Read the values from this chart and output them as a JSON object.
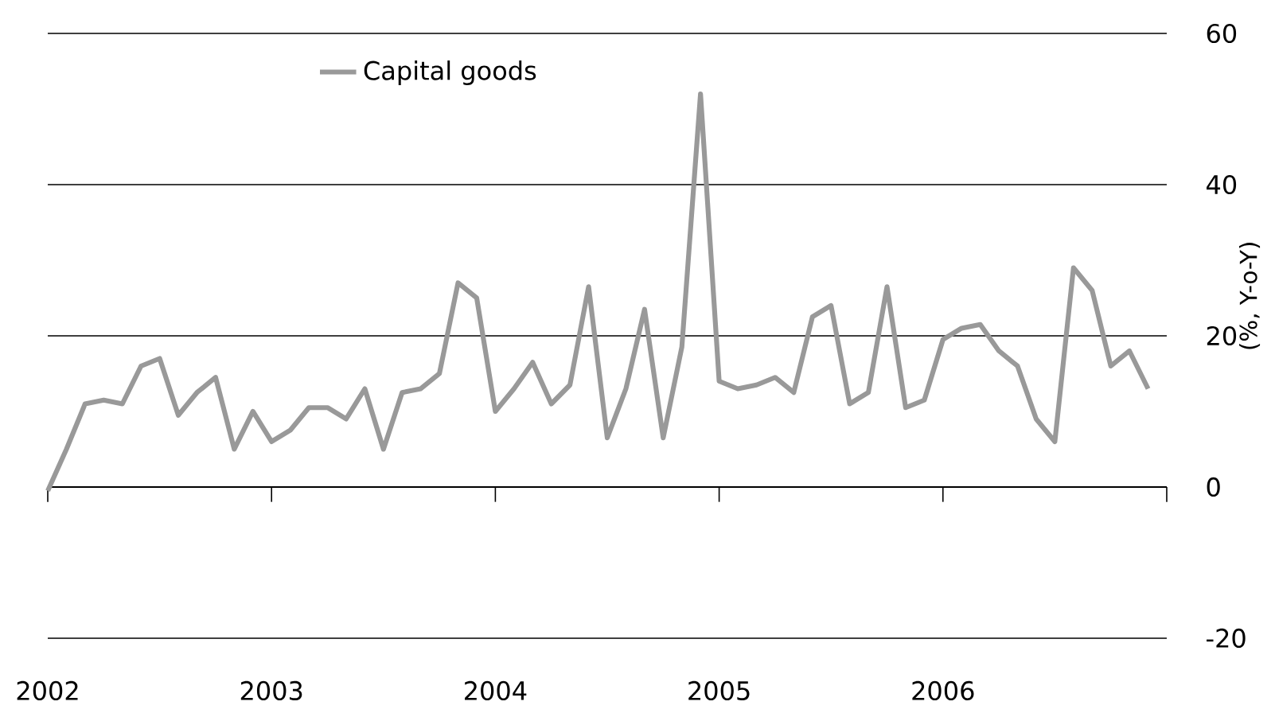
{
  "chart_data": {
    "type": "line",
    "ylabel": "(%, Y-o-Y)",
    "x": [
      2002,
      2002.0833,
      2002.1667,
      2002.25,
      2002.3333,
      2002.4167,
      2002.5,
      2002.5833,
      2002.6667,
      2002.75,
      2002.8333,
      2002.9167,
      2003,
      2003.0833,
      2003.1667,
      2003.25,
      2003.3333,
      2003.4167,
      2003.5,
      2003.5833,
      2003.6667,
      2003.75,
      2003.8333,
      2003.9167,
      2004,
      2004.0833,
      2004.1667,
      2004.25,
      2004.3333,
      2004.4167,
      2004.5,
      2004.5833,
      2004.6667,
      2004.75,
      2004.8333,
      2004.9167,
      2005,
      2005.0833,
      2005.1667,
      2005.25,
      2005.3333,
      2005.4167,
      2005.5,
      2005.5833,
      2005.6667,
      2005.75,
      2005.8333,
      2005.9167,
      2006,
      2006.0833,
      2006.1667,
      2006.25,
      2006.3333,
      2006.4167,
      2006.5,
      2006.5833,
      2006.6667,
      2006.75,
      2006.8333,
      2006.9167
    ],
    "series": [
      {
        "name": "Capital goods",
        "color": "#999999",
        "values": [
          -0.5,
          5,
          11,
          11.5,
          11,
          16,
          17,
          9.5,
          12.5,
          14.5,
          5,
          10,
          6,
          7.5,
          10.5,
          10.5,
          9,
          13,
          5,
          12.5,
          13,
          15,
          27,
          25,
          10,
          13,
          16.5,
          11,
          13.5,
          26.5,
          6.5,
          13,
          23.5,
          6.5,
          18.5,
          52,
          14,
          13,
          13.5,
          14.5,
          12.5,
          22.5,
          24,
          11,
          12.5,
          26.5,
          10.5,
          11.5,
          19.5,
          21,
          21.5,
          18,
          16,
          9,
          6,
          29,
          26,
          16,
          18,
          13
        ]
      }
    ],
    "xlim": [
      2002,
      2007
    ],
    "xticks": [
      2002,
      2003,
      2004,
      2005,
      2006,
      {
        "value": 2007,
        "label": null
      }
    ],
    "ylim": [
      -20,
      60
    ],
    "yticks": [
      -20,
      0,
      20,
      40,
      60
    ],
    "grid": "y",
    "legend": "top left",
    "line_style": "solid",
    "marker": "none"
  }
}
